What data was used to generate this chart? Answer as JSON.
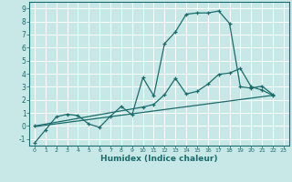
{
  "xlabel": "Humidex (Indice chaleur)",
  "xlim": [
    -0.5,
    23.5
  ],
  "ylim": [
    -1.5,
    9.5
  ],
  "xticks": [
    0,
    1,
    2,
    3,
    4,
    5,
    6,
    7,
    8,
    9,
    10,
    11,
    12,
    13,
    14,
    15,
    16,
    17,
    18,
    19,
    20,
    21,
    22,
    23
  ],
  "yticks": [
    -1,
    0,
    1,
    2,
    3,
    4,
    5,
    6,
    7,
    8,
    9
  ],
  "bg_color": "#c8e8e8",
  "line_color": "#1a6b6b",
  "grid_color": "#ffffff",
  "line1_x": [
    0,
    1,
    2,
    3,
    4,
    5,
    6,
    7,
    8,
    9,
    10,
    11,
    12,
    13,
    14,
    15,
    16,
    17,
    18,
    19,
    20,
    21,
    22
  ],
  "line1_y": [
    -1.3,
    -0.3,
    0.7,
    0.9,
    0.8,
    0.15,
    -0.1,
    0.75,
    1.5,
    0.85,
    3.7,
    2.3,
    6.3,
    7.2,
    8.55,
    8.65,
    8.65,
    8.8,
    7.85,
    3.0,
    2.9,
    3.05,
    2.4
  ],
  "line2_x": [
    0,
    22
  ],
  "line2_y": [
    -0.05,
    2.35
  ],
  "line3_x": [
    0,
    10,
    11,
    12,
    13,
    14,
    15,
    16,
    17,
    18,
    19,
    20,
    21,
    22
  ],
  "line3_y": [
    0.0,
    1.45,
    1.65,
    2.4,
    3.65,
    2.45,
    2.65,
    3.2,
    3.95,
    4.05,
    4.4,
    3.0,
    2.75,
    2.35
  ]
}
